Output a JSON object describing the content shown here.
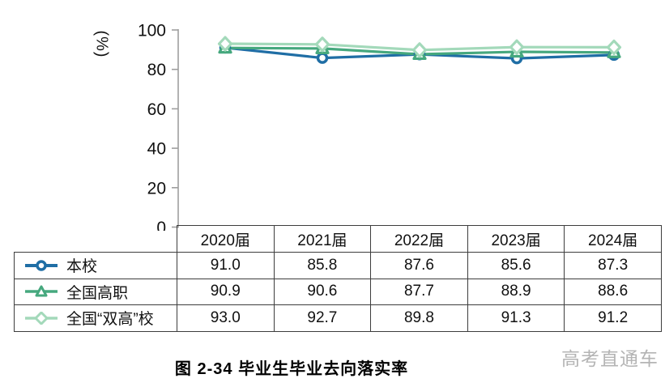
{
  "chart_data": {
    "type": "line",
    "categories": [
      "2020届",
      "2021届",
      "2022届",
      "2023届",
      "2024届"
    ],
    "series": [
      {
        "name": "本校",
        "marker": "circle",
        "color": "#1f6ea5",
        "values": [
          91.0,
          85.8,
          87.6,
          85.6,
          87.3
        ]
      },
      {
        "name": "全国高职",
        "marker": "triangle",
        "color": "#46a87e",
        "values": [
          90.9,
          90.6,
          87.7,
          88.9,
          88.6
        ]
      },
      {
        "name": "全国“双高”校",
        "marker": "diamond",
        "color": "#a3d9ba",
        "values": [
          93.0,
          92.7,
          89.8,
          91.3,
          91.2
        ]
      }
    ],
    "title": "图 2-34 毕业生毕业去向落实率",
    "xlabel": "",
    "ylabel": "(%)",
    "ylim": [
      0,
      100
    ],
    "yticks": [
      0,
      20,
      40,
      60,
      80,
      100
    ],
    "grid": false,
    "legend_position": "table-left",
    "axis_color": "#9e9e9e",
    "tick_label_color": "#111111"
  },
  "table": {
    "columns": [
      "2020届",
      "2021届",
      "2022届",
      "2023届",
      "2024届"
    ],
    "rows": [
      {
        "label": "本校",
        "values": [
          "91.0",
          "85.8",
          "87.6",
          "85.6",
          "87.3"
        ]
      },
      {
        "label": "全国高职",
        "values": [
          "90.9",
          "90.6",
          "87.7",
          "88.9",
          "88.6"
        ]
      },
      {
        "label": "全国“双高”校",
        "values": [
          "93.0",
          "92.7",
          "89.8",
          "91.3",
          "91.2"
        ]
      }
    ]
  },
  "ylabel": "(%)",
  "caption": "图 2-34 毕业生毕业去向落实率",
  "watermark": "高考直通车"
}
